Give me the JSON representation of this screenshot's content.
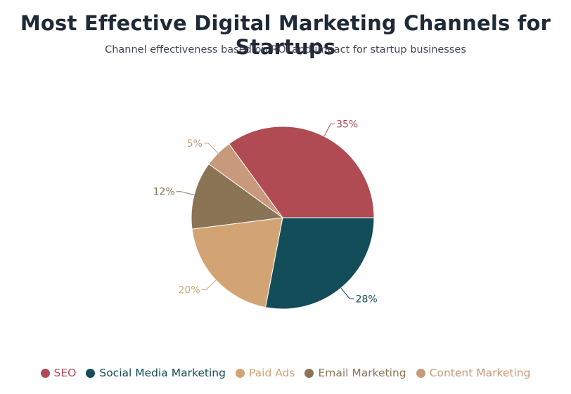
{
  "header": {
    "title": "Most Effective Digital Marketing Channels for Startups",
    "subtitle": "Channel effectiveness based on ROI and impact for startup businesses"
  },
  "chart_data": {
    "type": "pie",
    "title": "Most Effective Digital Marketing Channels for Startups",
    "subtitle": "Channel effectiveness based on ROI and impact for startup businesses",
    "legend_position": "bottom",
    "slices": [
      {
        "label": "SEO",
        "value": 35,
        "display": "35%",
        "color": "#b04a53"
      },
      {
        "label": "Content Marketing",
        "value": 5,
        "display": "5%",
        "color": "#c8997a"
      },
      {
        "label": "Email Marketing",
        "value": 12,
        "display": "12%",
        "color": "#8b7355"
      },
      {
        "label": "Paid Ads",
        "value": 20,
        "display": "20%",
        "color": "#d2a373"
      },
      {
        "label": "Social Media Marketing",
        "value": 28,
        "display": "28%",
        "color": "#134d59"
      }
    ],
    "legend": [
      {
        "label": "SEO",
        "color": "#b04a53"
      },
      {
        "label": "Social Media Marketing",
        "color": "#134d59"
      },
      {
        "label": "Paid Ads",
        "color": "#d2a373"
      },
      {
        "label": "Email Marketing",
        "color": "#8b7355"
      },
      {
        "label": "Content Marketing",
        "color": "#c8997a"
      }
    ]
  }
}
